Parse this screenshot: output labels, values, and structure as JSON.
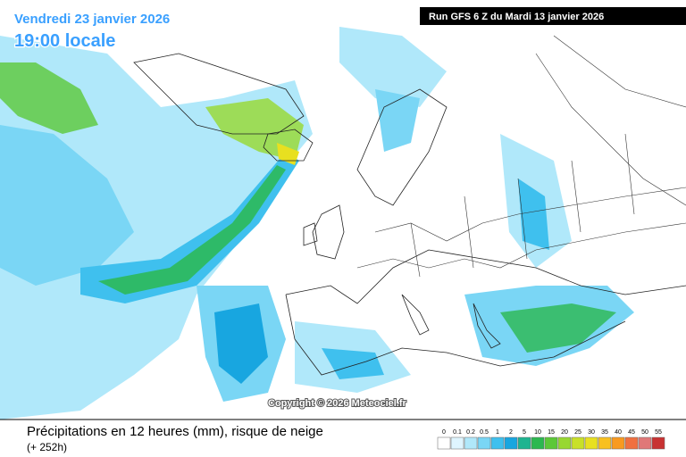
{
  "header": {
    "date": "Vendredi 23 janvier 2026",
    "time": "19:00 locale",
    "run": "Run GFS 6 Z du Mardi 13 janvier 2026"
  },
  "copyright": "Copyright © 2026 Meteociel.fr",
  "footer": {
    "title": "Précipitations en 12 heures (mm), risque de neige",
    "subtitle": "(+ 252h)"
  },
  "legend": [
    {
      "label": "0",
      "color": "#ffffff"
    },
    {
      "label": "0.1",
      "color": "#dff5ff"
    },
    {
      "label": "0.2",
      "color": "#b0e8fa"
    },
    {
      "label": "0.5",
      "color": "#7ad6f5"
    },
    {
      "label": "1",
      "color": "#3fc0ee"
    },
    {
      "label": "2",
      "color": "#18a6e0"
    },
    {
      "label": "5",
      "color": "#1fb490"
    },
    {
      "label": "10",
      "color": "#2cb850"
    },
    {
      "label": "15",
      "color": "#5cc838"
    },
    {
      "label": "20",
      "color": "#98d830"
    },
    {
      "label": "25",
      "color": "#c8e028"
    },
    {
      "label": "30",
      "color": "#e8e020"
    },
    {
      "label": "35",
      "color": "#f8c020"
    },
    {
      "label": "40",
      "color": "#f89a20"
    },
    {
      "label": "45",
      "color": "#f07040"
    },
    {
      "label": "50",
      "color": "#e07878"
    },
    {
      "label": "55",
      "color": "#c83232"
    }
  ]
}
